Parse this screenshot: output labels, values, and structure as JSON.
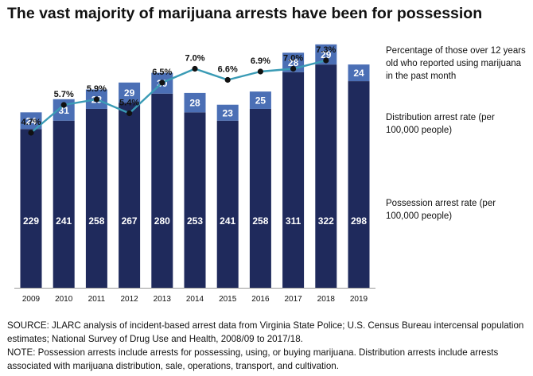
{
  "title": "The vast majority of marijuana arrests have been for possession",
  "colors": {
    "possession": "#1f2a5c",
    "distribution": "#4b6fb5",
    "line": "#3a9bb5",
    "marker": "#111111",
    "bar_text": "#ffffff",
    "axis": "#999999"
  },
  "chart_data": {
    "type": "bar",
    "stacked": true,
    "categories": [
      "2009",
      "2010",
      "2011",
      "2012",
      "2013",
      "2014",
      "2015",
      "2016",
      "2017",
      "2018",
      "2019"
    ],
    "series": [
      {
        "name": "Possession arrest rate (per 100,000 people)",
        "values": [
          229,
          241,
          258,
          267,
          280,
          253,
          241,
          258,
          311,
          322,
          298
        ],
        "labels": [
          "229",
          "241",
          "258",
          "267",
          "280",
          "253",
          "241",
          "258",
          "311",
          "322",
          "298"
        ]
      },
      {
        "name": "Distribution arrest rate (per 100,000 people)",
        "values": [
          24,
          31,
          28,
          29,
          30,
          28,
          23,
          25,
          28,
          29,
          24
        ],
        "labels": [
          "24",
          "31",
          "28",
          "29",
          "30",
          "28",
          "23",
          "25",
          "28",
          "29",
          "24"
        ]
      }
    ],
    "line_series": {
      "name": "Percentage of those over 12 years old who reported using marijuana in the past month",
      "type": "line",
      "x": [
        "2009",
        "2010",
        "2011",
        "2012",
        "2013",
        "2014",
        "2015",
        "2016",
        "2017",
        "2018"
      ],
      "values": [
        4.7,
        5.7,
        5.9,
        5.4,
        6.5,
        7.0,
        6.6,
        6.9,
        7.0,
        7.3
      ],
      "labels": [
        "4.7%",
        "5.7%",
        "5.9%",
        "5.4%",
        "6.5%",
        "7.0%",
        "6.6%",
        "6.9%",
        "7.0%",
        "7.3%"
      ]
    },
    "ylim": [
      0,
      360
    ],
    "line_ylim": [
      3.5,
      8.0
    ],
    "grid": false,
    "xlabel": "",
    "ylabel": ""
  },
  "legend": {
    "line": "Percentage of those over 12 years old who reported using marijuana in the past month",
    "distribution": "Distribution arrest rate (per 100,000 people)",
    "possession": "Possession arrest rate (per 100,000 people)"
  },
  "source": "SOURCE: JLARC analysis of incident-based arrest data from Virginia State Police; U.S. Census Bureau intercensal population estimates; National Survey of Drug Use and Health, 2008/09 to 2017/18.",
  "note": "NOTE: Possession arrests include arrests for possessing, using, or buying marijuana. Distribution arrests include arrests associated with marijuana distribution, sale, operations, transport, and cultivation."
}
